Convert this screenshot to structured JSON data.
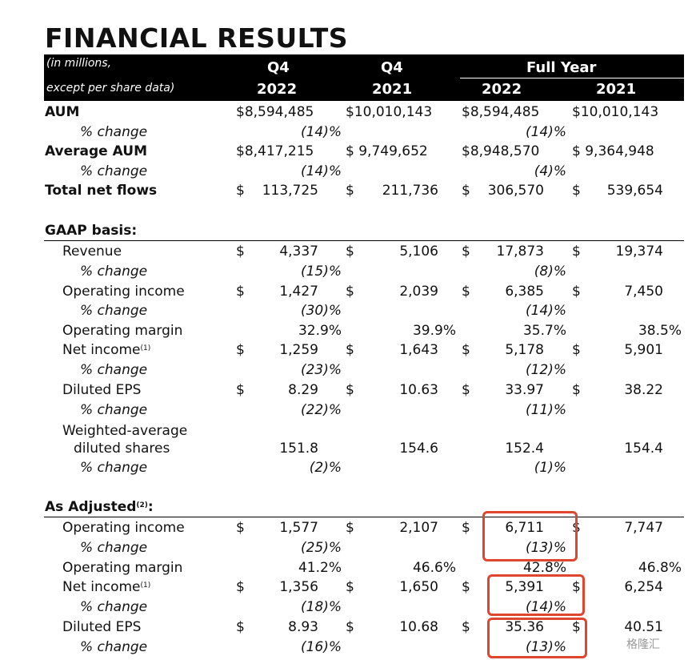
{
  "title": "FINANCIAL RESULTS",
  "header": {
    "note_line1": "(in millions,",
    "note_line2": "except per share data)",
    "q4_a": "Q4",
    "q4_b": "Q4",
    "full_year": "Full Year",
    "y_q4_2022": "2022",
    "y_q4_2021": "2021",
    "y_fy_2022": "2022",
    "y_fy_2021": "2021"
  },
  "rows": {
    "aum": {
      "label": "AUM",
      "v": [
        "$8,594,485",
        "$10,010,143",
        "$8,594,485",
        "$10,010,143"
      ]
    },
    "aum_pct": {
      "label": "% change",
      "v": [
        "(14)%",
        "",
        "(14)%",
        ""
      ]
    },
    "avg_aum": {
      "label": "Average AUM",
      "v": [
        "$8,417,215",
        "$ 9,749,652",
        "$8,948,570",
        "$ 9,364,948"
      ]
    },
    "avg_aum_pct": {
      "label": "% change",
      "v": [
        "(14)%",
        "",
        "(4)%",
        ""
      ]
    },
    "net_flows": {
      "label": "Total net flows",
      "v": [
        "113,725",
        "211,736",
        "306,570",
        "539,654"
      ]
    },
    "gaap": {
      "label": "GAAP basis:"
    },
    "rev": {
      "label": "Revenue",
      "v": [
        "4,337",
        "5,106",
        "17,873",
        "19,374"
      ]
    },
    "rev_pct": {
      "label": "% change",
      "v": [
        "(15)%",
        "",
        "(8)%",
        ""
      ]
    },
    "opinc": {
      "label": "Operating income",
      "v": [
        "1,427",
        "2,039",
        "6,385",
        "7,450"
      ]
    },
    "opinc_pct": {
      "label": "% change",
      "v": [
        "(30)%",
        "",
        "(14)%",
        ""
      ]
    },
    "opmargin": {
      "label": "Operating margin",
      "v": [
        "32.9%",
        "39.9%",
        "35.7%",
        "38.5%"
      ]
    },
    "netinc": {
      "label": "Net income",
      "sup": "(1)",
      "v": [
        "1,259",
        "1,643",
        "5,178",
        "5,901"
      ]
    },
    "netinc_pct": {
      "label": "% change",
      "v": [
        "(23)%",
        "",
        "(12)%",
        ""
      ]
    },
    "eps": {
      "label": "Diluted EPS",
      "v": [
        "8.29",
        "10.63",
        "33.97",
        "38.22"
      ]
    },
    "eps_pct": {
      "label": "% change",
      "v": [
        "(22)%",
        "",
        "(11)%",
        ""
      ]
    },
    "wavg1": {
      "label": "Weighted-average"
    },
    "wavg2": {
      "label": "diluted shares",
      "v": [
        "151.8",
        "154.6",
        "152.4",
        "154.4"
      ]
    },
    "wavg_pct": {
      "label": "% change",
      "v": [
        "(2)%",
        "",
        "(1)%",
        ""
      ]
    },
    "adj": {
      "label": "As Adjusted",
      "sup": "(2)",
      "colon": ":"
    },
    "a_opinc": {
      "label": "Operating income",
      "v": [
        "1,577",
        "2,107",
        "6,711",
        "7,747"
      ]
    },
    "a_opinc_pct": {
      "label": "% change",
      "v": [
        "(25)%",
        "",
        "(13)%",
        ""
      ]
    },
    "a_opmargin": {
      "label": "Operating margin",
      "v": [
        "41.2%",
        "46.6%",
        "42.8%",
        "46.8%"
      ]
    },
    "a_netinc": {
      "label": "Net income",
      "sup": "(1)",
      "v": [
        "1,356",
        "1,650",
        "5,391",
        "6,254"
      ]
    },
    "a_netinc_pct": {
      "label": "% change",
      "v": [
        "(18)%",
        "",
        "(14)%",
        ""
      ]
    },
    "a_eps": {
      "label": "Diluted EPS",
      "v": [
        "8.93",
        "10.68",
        "35.36",
        "40.51"
      ]
    },
    "a_eps_pct": {
      "label": "% change",
      "v": [
        "(16)%",
        "",
        "(13)%",
        ""
      ]
    }
  },
  "currency_symbol": "$",
  "highlight_color": "#e0452f",
  "watermark": "格隆汇"
}
